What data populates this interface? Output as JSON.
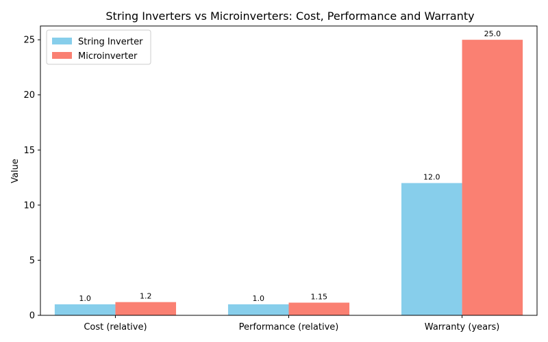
{
  "chart_data": {
    "type": "bar",
    "title": "String Inverters vs Microinverters: Cost, Performance and Warranty",
    "xlabel": "",
    "ylabel": "Value",
    "categories": [
      "Cost (relative)",
      "Performance (relative)",
      "Warranty (years)"
    ],
    "series": [
      {
        "name": "String Inverter",
        "values": [
          1.0,
          1.0,
          12.0
        ],
        "labels": [
          "1.0",
          "1.0",
          "12.0"
        ],
        "color": "#87ceeb"
      },
      {
        "name": "Microinverter",
        "values": [
          1.2,
          1.15,
          25.0
        ],
        "labels": [
          "1.2",
          "1.15",
          "25.0"
        ],
        "color": "#fa8072"
      }
    ],
    "ylim": [
      0,
      26.25
    ],
    "yticks": [
      0,
      5,
      10,
      15,
      20,
      25
    ],
    "legend": "top-left",
    "grid": false
  }
}
